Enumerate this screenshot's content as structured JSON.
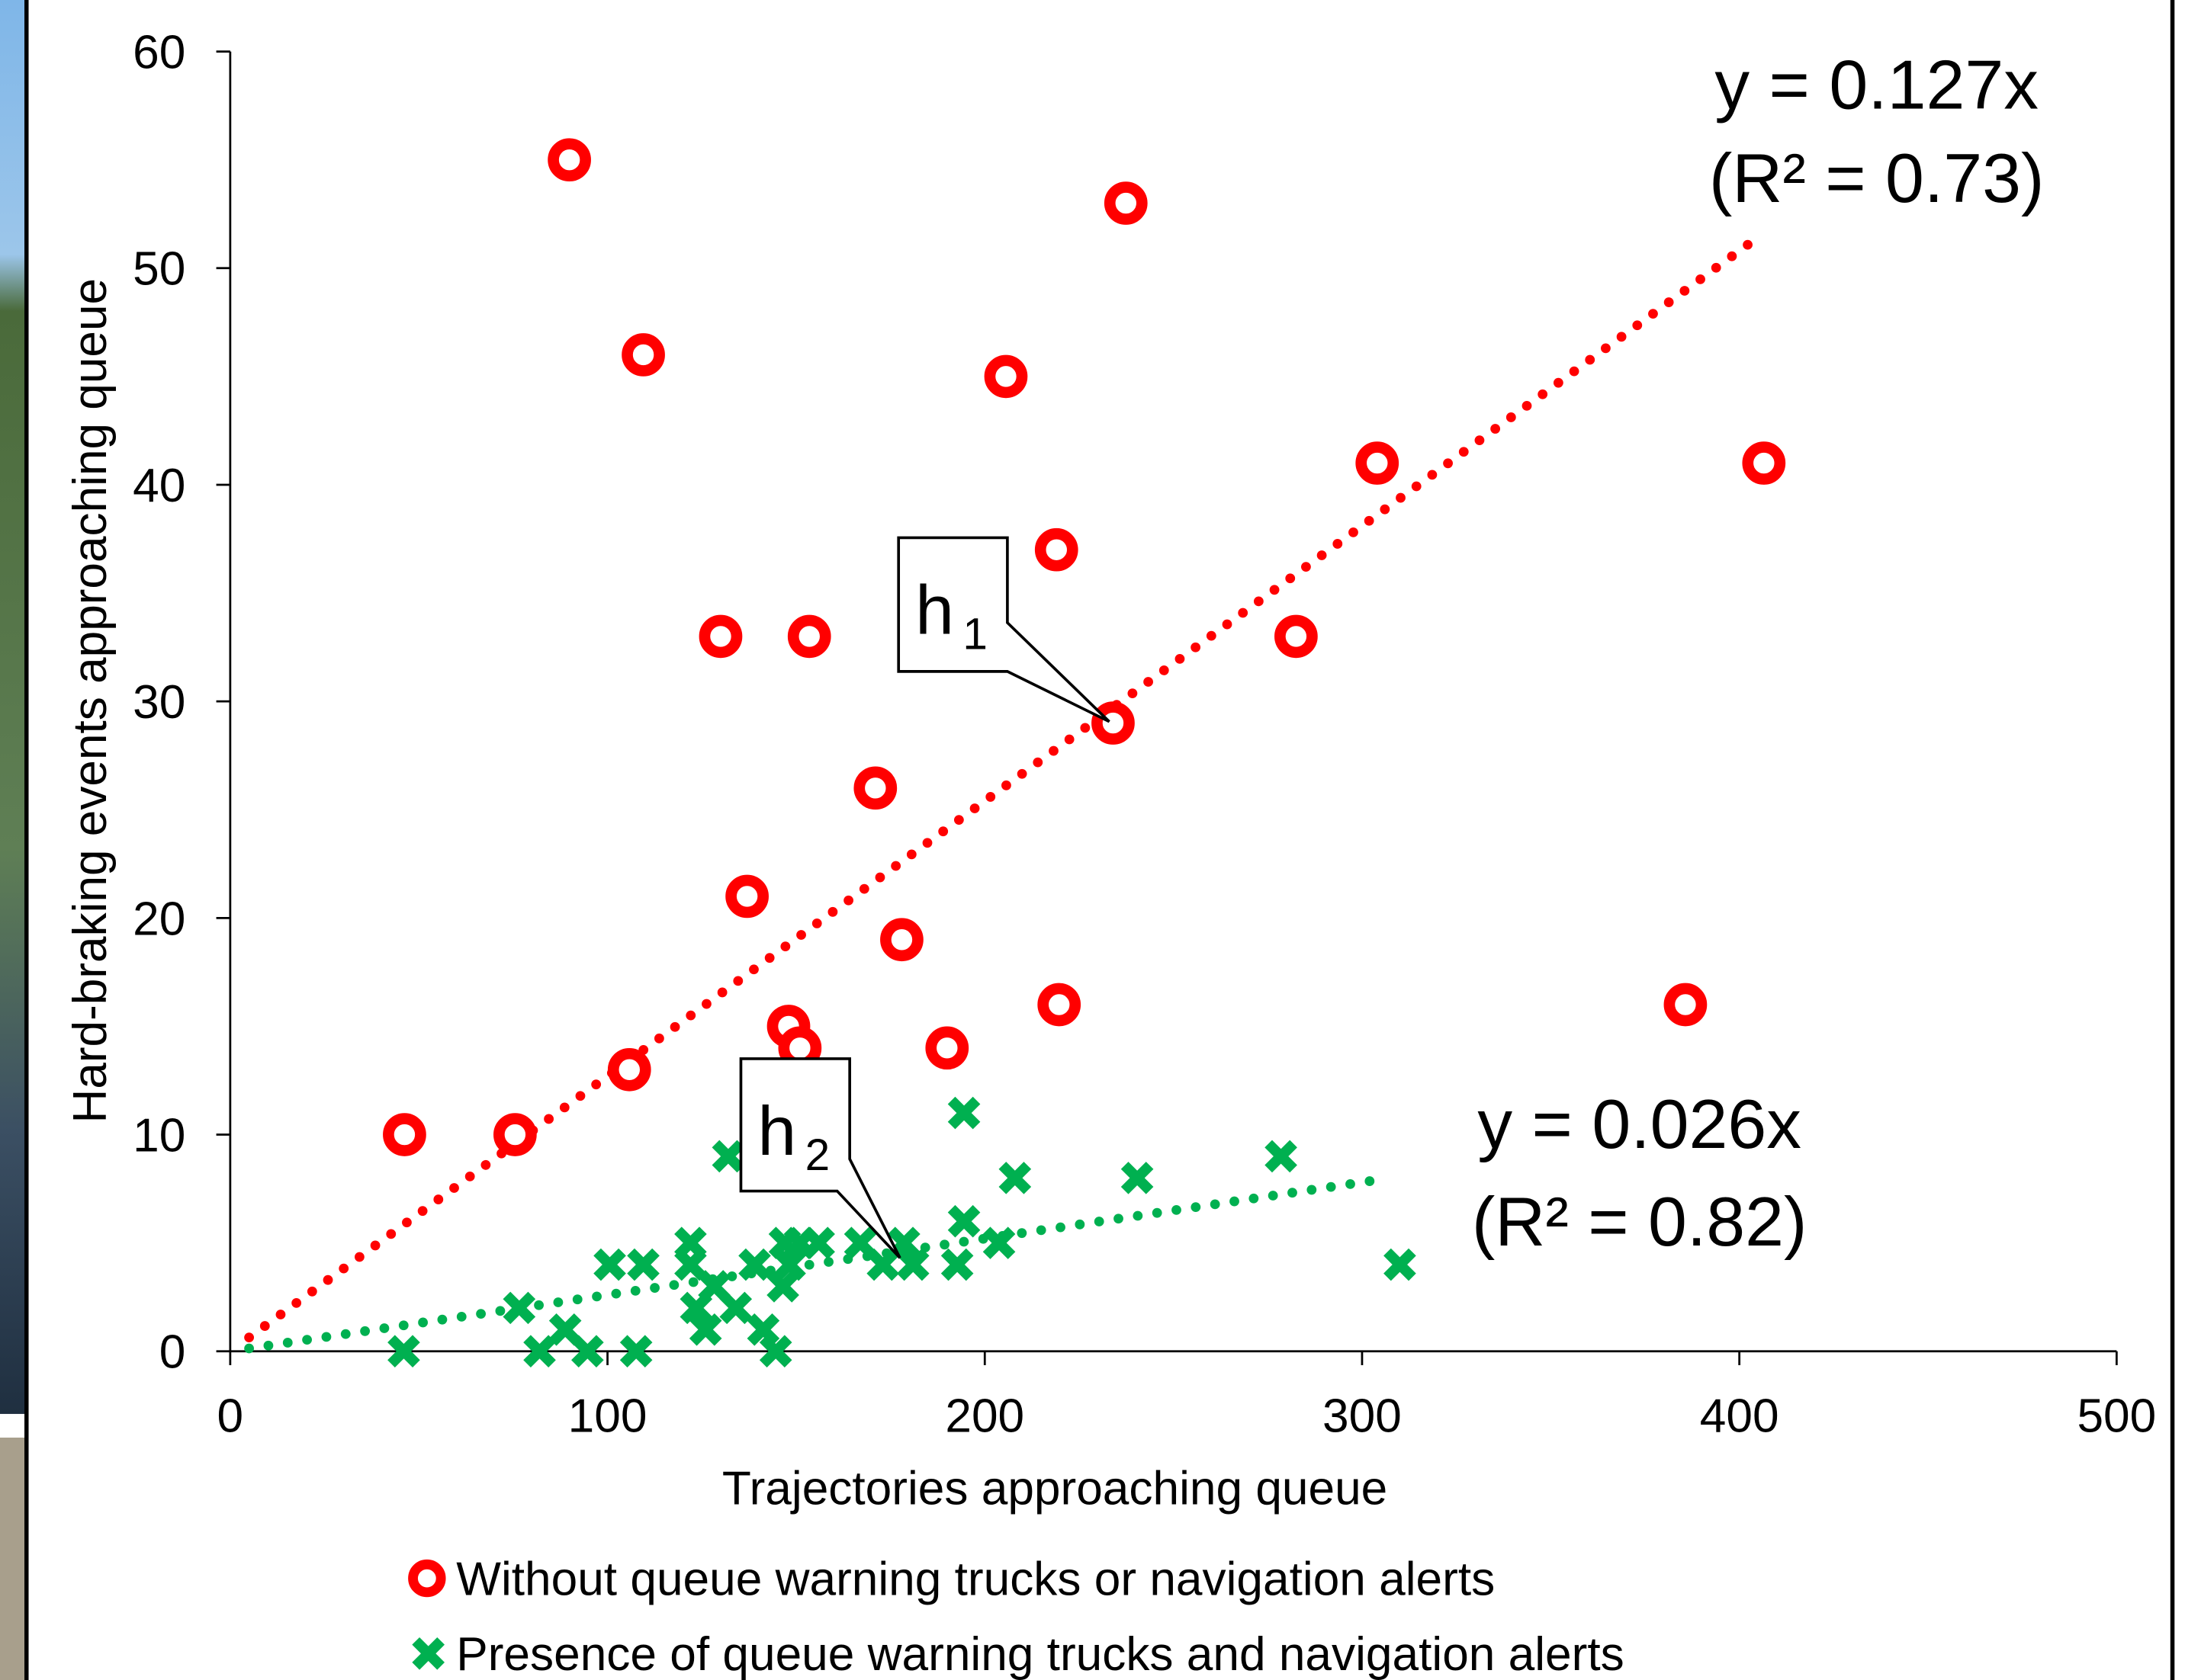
{
  "chart_data": {
    "type": "scatter",
    "xlabel": "Trajectories approaching queue",
    "ylabel": "Hard-braking events approaching queue",
    "xlim": [
      0,
      500
    ],
    "ylim": [
      0,
      60
    ],
    "xticks": [
      0,
      100,
      200,
      300,
      400,
      500
    ],
    "yticks": [
      0,
      10,
      20,
      30,
      40,
      50,
      60
    ],
    "grid": false,
    "legend": "bottom",
    "series": [
      {
        "name": "Without queue warning trucks or navigation alerts",
        "color": "#ff0000",
        "marker": "ring",
        "x": [
          46.2,
          75.5,
          105.8,
          89.9,
          109.5,
          130,
          153.5,
          137,
          148,
          151,
          171,
          178,
          190,
          205.6,
          219,
          219.7,
          237.4,
          234,
          282.5,
          304,
          385.7,
          406.5
        ],
        "values": [
          10,
          10,
          13,
          55,
          46,
          33,
          33,
          21,
          15,
          14,
          26,
          19,
          14,
          45,
          37,
          16,
          53,
          29,
          33,
          41,
          16,
          41
        ],
        "trendline": {
          "slope": 0.127,
          "equation": "y = 0.127x",
          "r2": "(R² = 0.73)"
        }
      },
      {
        "name": "Presence of queue warning trucks and navigation alerts",
        "color": "#00b050",
        "marker": "x",
        "x": [
          46,
          76.6,
          82,
          88.8,
          94.7,
          100.6,
          107.6,
          109.5,
          122,
          122,
          123.5,
          126,
          128.3,
          132,
          134,
          139,
          141.3,
          144.6,
          146.5,
          147,
          148.3,
          151,
          156,
          167,
          173,
          178.6,
          181,
          192.7,
          194.5,
          194.5,
          203.8,
          208,
          240.4,
          278.5,
          310
        ],
        "values": [
          0,
          2,
          0,
          1,
          0,
          4,
          0,
          4,
          5,
          4,
          2,
          1,
          3,
          9,
          2,
          4,
          1,
          0,
          3,
          5,
          4,
          5,
          5,
          5,
          4,
          5,
          4,
          4,
          6,
          11,
          5,
          8,
          8,
          9,
          4
        ],
        "trendline": {
          "slope": 0.026,
          "equation": "y = 0.026x",
          "r2": "(R² = 0.82)"
        }
      }
    ],
    "annotations": [
      {
        "text": "h",
        "sub": "1"
      },
      {
        "text": "h",
        "sub": "2"
      }
    ]
  }
}
